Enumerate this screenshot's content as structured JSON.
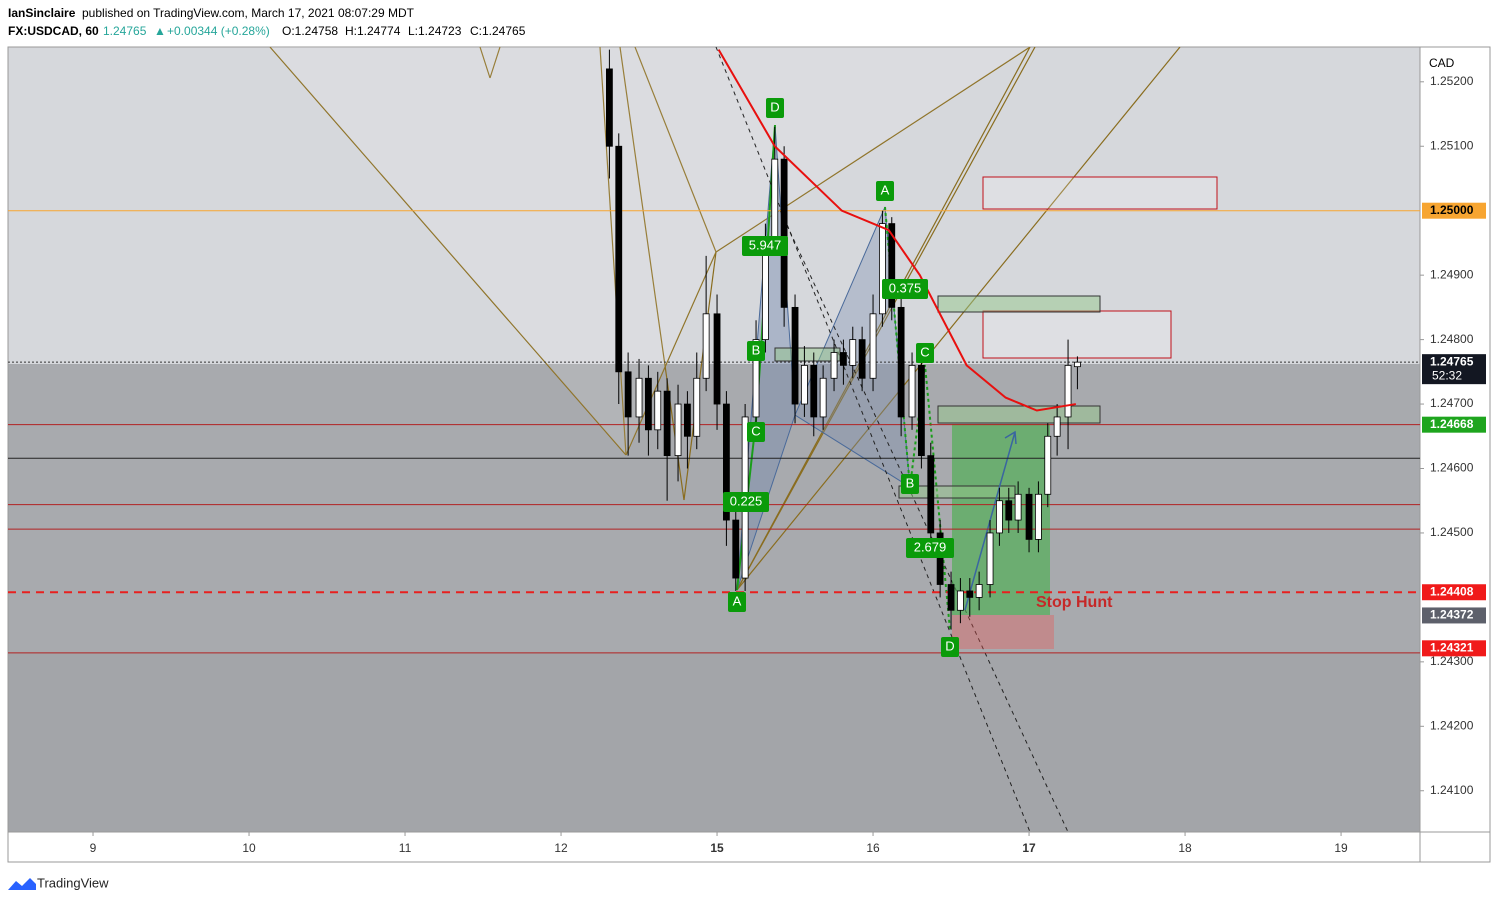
{
  "header": {
    "author": "IanSinclaire",
    "published": "published on TradingView.com, March 17, 2021 08:07:29 MDT",
    "symbol": "FX:USDCAD, 60",
    "last": "1.24765",
    "arrow": "▲",
    "change": "+0.00344 (+0.28%)",
    "open": "O:1.24758",
    "high": "H:1.24774",
    "low": "L:1.24723",
    "close": "C:1.24765"
  },
  "annotations": {
    "left_d": "D",
    "left_ratio_top": "5.947",
    "left_b": "B",
    "left_c": "C",
    "left_ratio_bottom": "0.225",
    "left_a": "A",
    "right_a": "A",
    "right_ratio_top": "0.375",
    "right_c": "C",
    "right_b": "B",
    "right_ratio_bottom": "2.679",
    "right_d": "D",
    "stop_hunt": "Stop Hunt"
  },
  "footer": {
    "brand": "TradingView"
  },
  "chart_data": {
    "type": "candlestick",
    "currency": "CAD",
    "countdown": "52:32",
    "x": [
      3.31,
      3.37,
      3.43,
      3.5,
      3.56,
      3.62,
      3.68,
      3.75,
      3.81,
      3.87,
      3.93,
      4.0,
      4.06,
      4.12,
      4.18,
      4.25,
      4.31,
      4.37,
      4.43,
      4.5,
      4.56,
      4.62,
      4.68,
      4.75,
      4.81,
      4.87,
      4.93,
      5.0,
      5.06,
      5.12,
      5.18,
      5.25,
      5.31,
      5.37,
      5.43,
      5.5,
      5.56,
      5.62,
      5.68,
      5.75,
      5.81,
      5.87,
      5.93,
      6.0,
      6.06,
      6.12,
      6.18,
      6.25,
      6.31
    ],
    "open": [
      1.2522,
      1.251,
      1.2475,
      1.2468,
      1.2474,
      1.2466,
      1.2472,
      1.2462,
      1.247,
      1.2465,
      1.2474,
      1.2484,
      1.247,
      1.2452,
      1.2443,
      1.2468,
      1.248,
      1.2495,
      1.2508,
      1.2485,
      1.247,
      1.2476,
      1.2468,
      1.2474,
      1.2478,
      1.2476,
      1.248,
      1.2474,
      1.2484,
      1.2498,
      1.2485,
      1.2468,
      1.2476,
      1.2462,
      1.245,
      1.2442,
      1.2438,
      1.2441,
      1.244,
      1.2442,
      1.245,
      1.2455,
      1.2452,
      1.2456,
      1.2449,
      1.2456,
      1.2465,
      1.2468,
      1.24758
    ],
    "high": [
      1.2525,
      1.2512,
      1.2478,
      1.2477,
      1.2476,
      1.2475,
      1.2474,
      1.2473,
      1.2472,
      1.2478,
      1.2493,
      1.2487,
      1.2472,
      1.2456,
      1.247,
      1.2483,
      1.2498,
      1.2513,
      1.251,
      1.2487,
      1.2479,
      1.2478,
      1.2476,
      1.248,
      1.248,
      1.2482,
      1.2482,
      1.2487,
      1.25,
      1.2499,
      1.2487,
      1.2478,
      1.2477,
      1.2464,
      1.2452,
      1.2444,
      1.2443,
      1.2443,
      1.2444,
      1.2452,
      1.2457,
      1.2457,
      1.2458,
      1.2457,
      1.2458,
      1.2467,
      1.247,
      1.248,
      1.24774
    ],
    "low": [
      1.2505,
      1.247,
      1.2462,
      1.2464,
      1.2462,
      1.2463,
      1.2455,
      1.2458,
      1.246,
      1.2463,
      1.2472,
      1.2466,
      1.2448,
      1.2441,
      1.2441,
      1.2466,
      1.2478,
      1.2493,
      1.2482,
      1.2467,
      1.2468,
      1.2465,
      1.2466,
      1.2472,
      1.2473,
      1.2474,
      1.2472,
      1.2472,
      1.2482,
      1.2483,
      1.2465,
      1.2466,
      1.246,
      1.2448,
      1.244,
      1.2435,
      1.2436,
      1.2437,
      1.2438,
      1.244,
      1.2448,
      1.245,
      1.245,
      1.2447,
      1.2447,
      1.2454,
      1.2462,
      1.2463,
      1.24723
    ],
    "close": [
      1.251,
      1.2475,
      1.2468,
      1.2474,
      1.2466,
      1.2472,
      1.2462,
      1.247,
      1.2465,
      1.2474,
      1.2484,
      1.247,
      1.2452,
      1.2443,
      1.2468,
      1.248,
      1.2495,
      1.2508,
      1.2485,
      1.247,
      1.2476,
      1.2468,
      1.2474,
      1.2478,
      1.2476,
      1.248,
      1.2474,
      1.2484,
      1.2498,
      1.2485,
      1.2468,
      1.2476,
      1.2462,
      1.245,
      1.2442,
      1.2438,
      1.2441,
      1.244,
      1.2442,
      1.245,
      1.2455,
      1.2452,
      1.2456,
      1.2449,
      1.2456,
      1.2465,
      1.2468,
      1.2476,
      1.24765
    ],
    "up_color": "#ffffff",
    "down_color": "#000000",
    "moving_average": {
      "color": "#e8100f",
      "x": [
        4.01,
        4.37,
        4.8,
        5.1,
        5.3,
        5.6,
        5.85,
        6.05,
        6.3
      ],
      "values": [
        1.2525,
        1.251,
        1.25,
        1.2497,
        1.249,
        1.2476,
        1.2471,
        1.2469,
        1.247
      ]
    },
    "levels": [
      {
        "value": 1.25,
        "color": "#f7a531",
        "style": "solid"
      },
      {
        "value": 1.24765,
        "color": "#333333",
        "style": "dotted"
      },
      {
        "value": 1.24668,
        "color": "#b22222",
        "style": "solid"
      },
      {
        "value": 1.24616,
        "color": "#222222",
        "style": "solid"
      },
      {
        "value": 1.24544,
        "color": "#b22222",
        "style": "solid"
      },
      {
        "value": 1.24506,
        "color": "#b22222",
        "style": "solid"
      },
      {
        "value": 1.24408,
        "color": "#e8201f",
        "style": "dashed"
      },
      {
        "value": 1.24314,
        "color": "#b22222",
        "style": "solid"
      }
    ],
    "price_labels": [
      {
        "value": 1.25,
        "label": "1.25000",
        "color": "#f7a531",
        "text_color": "#000000"
      },
      {
        "value": 1.24765,
        "label": "1.24765",
        "color": "#131722",
        "text_color": "#ffffff"
      },
      {
        "value": 1.24668,
        "label": "1.24668",
        "color": "#1ea51e",
        "text_color": "#ffffff"
      },
      {
        "value": 1.24408,
        "label": "1.24408",
        "color": "#f01a1a",
        "text_color": "#ffffff"
      },
      {
        "value": 1.24372,
        "label": "1.24372",
        "color": "#5d606b",
        "text_color": "#ffffff"
      },
      {
        "value": 1.24321,
        "label": "1.24321",
        "color": "#f01a1a",
        "text_color": "#ffffff"
      }
    ],
    "xlim": [
      -0.545,
      8.506
    ],
    "ylim": [
      1.24036,
      1.25254
    ],
    "xticks": [
      {
        "value": 0,
        "label": "9"
      },
      {
        "value": 1,
        "label": "10"
      },
      {
        "value": 2,
        "label": "11"
      },
      {
        "value": 3,
        "label": "12"
      },
      {
        "value": 4,
        "label": "15"
      },
      {
        "value": 5,
        "label": "16"
      },
      {
        "value": 6,
        "label": "17"
      },
      {
        "value": 7,
        "label": "18"
      },
      {
        "value": 8,
        "label": "19"
      }
    ],
    "yticks": [
      {
        "value": 1.252,
        "label": "1.25200"
      },
      {
        "value": 1.251,
        "label": "1.25100"
      },
      {
        "value": 1.249,
        "label": "1.24900"
      },
      {
        "value": 1.248,
        "label": "1.24800"
      },
      {
        "value": 1.247,
        "label": "1.24700"
      },
      {
        "value": 1.246,
        "label": "1.24600"
      },
      {
        "value": 1.245,
        "label": "1.24500"
      },
      {
        "value": 1.243,
        "label": "1.24300"
      },
      {
        "value": 1.242,
        "label": "1.24200"
      },
      {
        "value": 1.241,
        "label": "1.24100"
      }
    ]
  }
}
